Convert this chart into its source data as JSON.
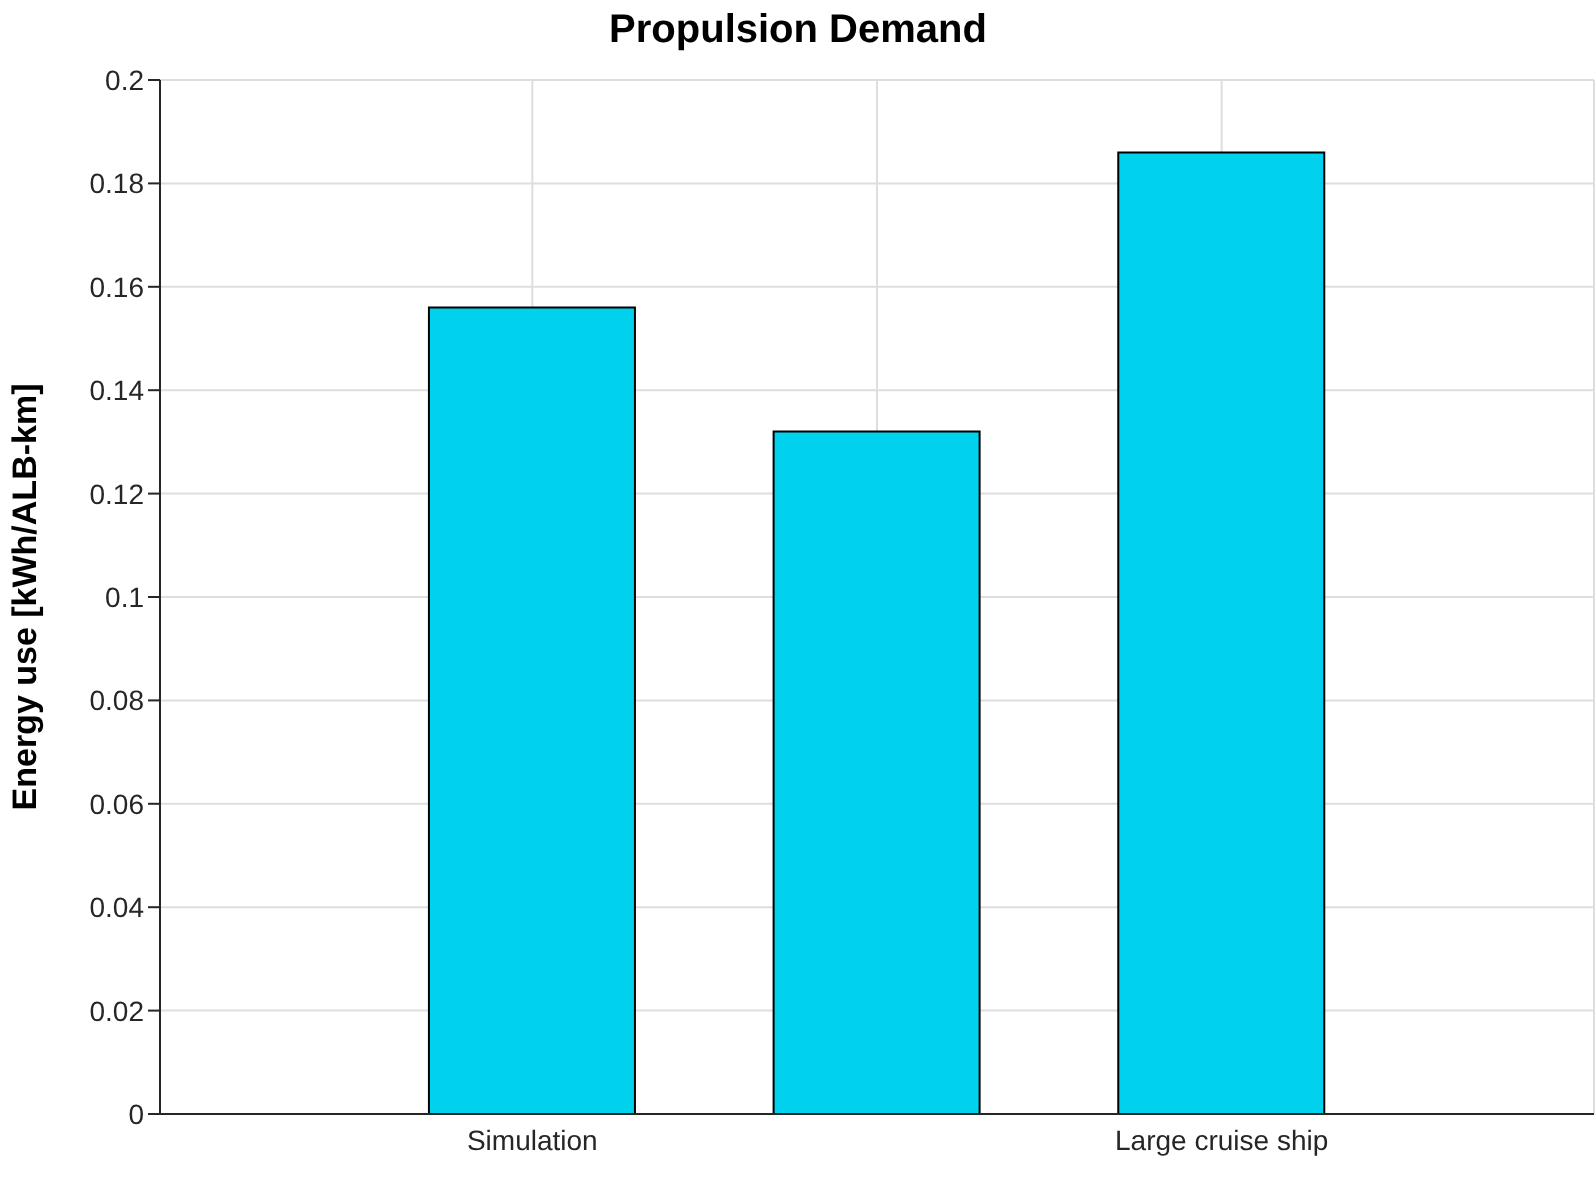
{
  "chart_data": {
    "type": "bar",
    "title": "Propulsion Demand",
    "ylabel": "Energy use [kWh/ALB-km]",
    "categories": [
      "Simulation",
      null,
      "Large cruise ship"
    ],
    "values": [
      0.156,
      0.132,
      0.186
    ],
    "color": "#00d2ee",
    "ylim": [
      0,
      0.2
    ],
    "yticks": [
      0,
      0.02,
      0.04,
      0.06,
      0.08,
      0.1,
      0.12,
      0.14,
      0.16,
      0.18,
      0.2
    ],
    "grid": true
  }
}
